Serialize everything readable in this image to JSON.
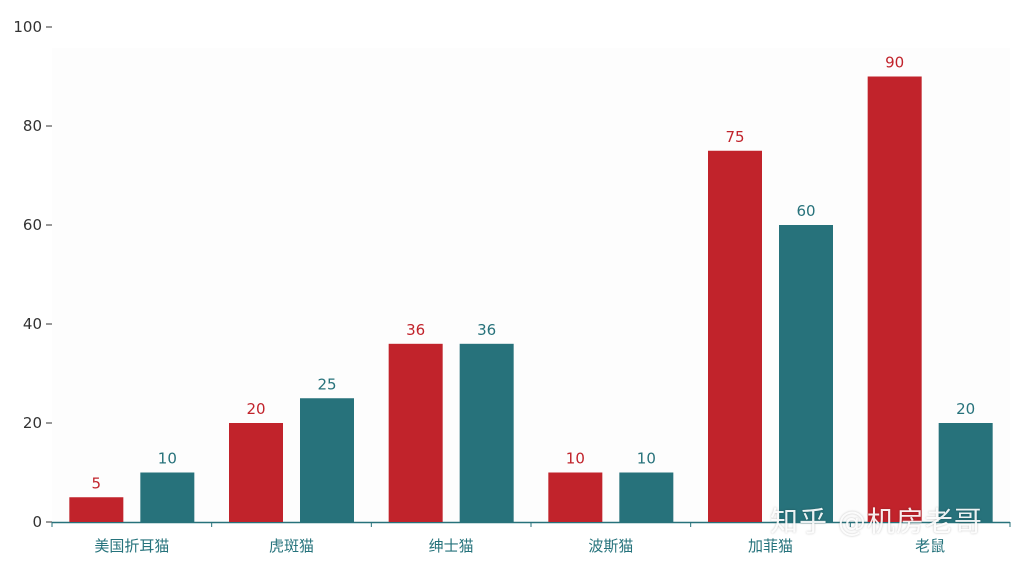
{
  "chart_data": {
    "type": "bar",
    "categories": [
      "美国折耳猫",
      "虎斑猫",
      "绅士猫",
      "波斯猫",
      "加菲猫",
      "老鼠"
    ],
    "series": [
      {
        "values": [
          5,
          20,
          36,
          10,
          75,
          90
        ],
        "color": "#c1232b"
      },
      {
        "values": [
          10,
          25,
          36,
          10,
          60,
          20
        ],
        "color": "#27727b"
      }
    ],
    "ylim": [
      0,
      100
    ],
    "yticks": [
      0,
      20,
      40,
      60,
      80,
      100
    ],
    "title": "",
    "xlabel": "",
    "ylabel": "",
    "grid": false,
    "show_data_labels": true
  },
  "watermark": "知乎 @机房老哥"
}
